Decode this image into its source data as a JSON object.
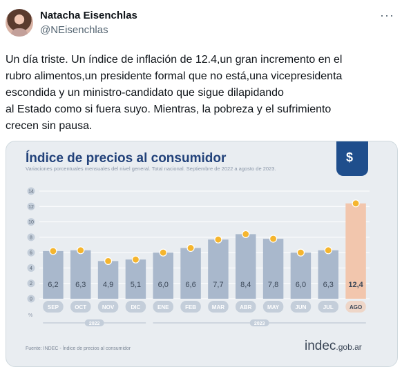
{
  "tweet": {
    "author_name": "Natacha Eisenchlas",
    "author_handle": "@NEisenchlas",
    "more_icon": "···",
    "text_lines": [
      "Un día triste. Un índice de inflación de 12.4,un gran incremento en el",
      "rubro alimentos,un presidente formal que no está,una vicepresidenta",
      "escondida y un ministro-candidato que sigue dilapidando",
      "al Estado como si fuera suyo. Mientras, la pobreza y el sufrimiento",
      "crecen sin pausa."
    ]
  },
  "card": {
    "title": "Índice de precios al consumidor",
    "subtitle": "Variaciones porcentuales mensuales del nivel general. Total nacional. Septiembre de 2022 a agosto de 2023.",
    "logo_icon": "money-bag-icon",
    "logo_glyph": "$",
    "source": "Fuente: INDEC - Índice de precios al consumidor",
    "brand_main": "indec",
    "brand_domain": ".gob.ar"
  },
  "chart_data": {
    "type": "bar",
    "categories": [
      "SEP",
      "OCT",
      "NOV",
      "DIC",
      "ENE",
      "FEB",
      "MAR",
      "ABR",
      "MAY",
      "JUN",
      "JUL",
      "AGO"
    ],
    "values": [
      6.2,
      6.3,
      4.9,
      5.1,
      6.0,
      6.6,
      7.7,
      8.4,
      7.8,
      6.0,
      6.3,
      12.4
    ],
    "value_labels": [
      "6,2",
      "6,3",
      "4,9",
      "5,1",
      "6,0",
      "6,6",
      "7,7",
      "8,4",
      "7,8",
      "6,0",
      "6,3",
      "12,4"
    ],
    "y_ticks": [
      0,
      2,
      4,
      6,
      8,
      10,
      12,
      14
    ],
    "y_unit": "%",
    "ylim": [
      0,
      14
    ],
    "year_groups": [
      {
        "label": "2022",
        "from": 0,
        "to": 3
      },
      {
        "label": "2023",
        "from": 4,
        "to": 11
      }
    ],
    "highlight_index": 11,
    "colors": {
      "bar": "#a9b8cc",
      "highlight": "#f2c6ad",
      "marker": "#f5b52e",
      "axis": "#8a96a8",
      "label": "#3c4858",
      "tick_bg": "#c4ceda",
      "tick_bg_highlight": "#eed6c8"
    }
  }
}
